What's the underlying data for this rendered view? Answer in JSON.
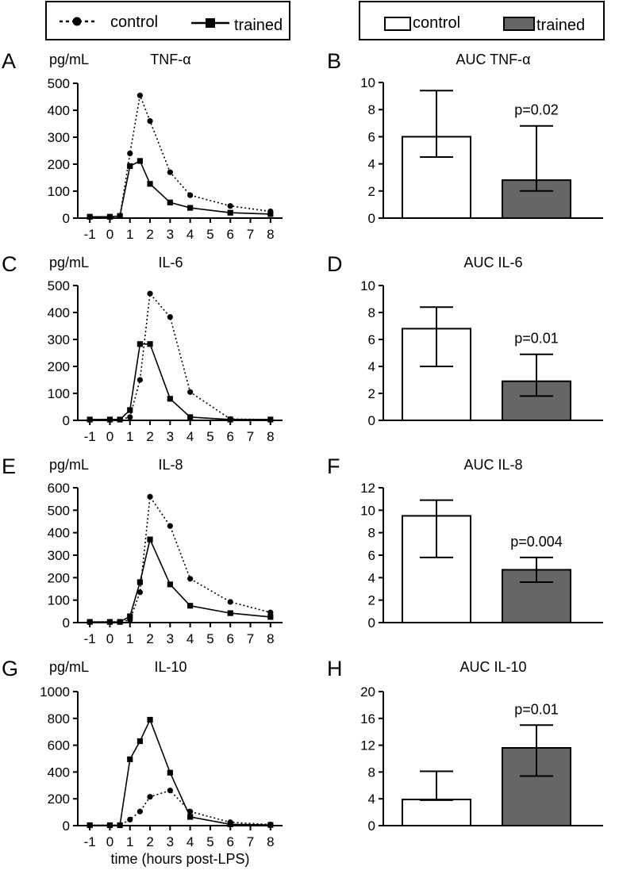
{
  "legend_left": {
    "control_label": "control",
    "trained_label": "trained"
  },
  "legend_right": {
    "control_label": "control",
    "trained_label": "trained"
  },
  "colors": {
    "control": "#000000",
    "trained": "#000000",
    "bar_control": "#ffffff",
    "bar_trained": "#666666"
  },
  "xlabel": "time (hours post-LPS)",
  "chart_data": [
    {
      "panel": "A",
      "type": "line",
      "title": "TNF-α",
      "unit": "pg/mL",
      "xticks": [
        -1,
        0,
        1,
        2,
        3,
        4,
        5,
        6,
        7,
        8
      ],
      "ylim": [
        0,
        500
      ],
      "yticks": [
        0,
        100,
        200,
        300,
        400,
        500
      ],
      "series": [
        {
          "name": "control",
          "style": "dotted-circle",
          "x": [
            -1,
            0,
            0.5,
            1,
            1.5,
            2,
            3,
            4,
            6,
            8
          ],
          "y": [
            5,
            5,
            8,
            240,
            455,
            360,
            170,
            85,
            45,
            25
          ]
        },
        {
          "name": "trained",
          "style": "solid-square",
          "x": [
            -1,
            0,
            0.5,
            1,
            1.5,
            2,
            3,
            4,
            6,
            8
          ],
          "y": [
            5,
            5,
            8,
            193,
            212,
            127,
            58,
            38,
            20,
            15
          ]
        }
      ]
    },
    {
      "panel": "B",
      "type": "bar",
      "title": "AUC TNF-α",
      "categories": [
        "control",
        "trained"
      ],
      "values": [
        6.0,
        2.8
      ],
      "err_low": [
        4.5,
        2.0
      ],
      "err_high": [
        9.4,
        6.8
      ],
      "ylim": [
        0,
        10
      ],
      "yticks": [
        0,
        2,
        4,
        6,
        8,
        10
      ],
      "p": "p=0.02"
    },
    {
      "panel": "C",
      "type": "line",
      "title": "IL-6",
      "unit": "pg/mL",
      "xticks": [
        -1,
        0,
        1,
        2,
        3,
        4,
        5,
        6,
        7,
        8
      ],
      "ylim": [
        0,
        500
      ],
      "yticks": [
        0,
        100,
        200,
        300,
        400,
        500
      ],
      "series": [
        {
          "name": "control",
          "style": "dotted-circle",
          "x": [
            -1,
            0,
            0.5,
            1,
            1.5,
            2,
            3,
            4,
            6,
            8
          ],
          "y": [
            3,
            3,
            3,
            12,
            150,
            470,
            383,
            105,
            5,
            3
          ]
        },
        {
          "name": "trained",
          "style": "solid-square",
          "x": [
            -1,
            0,
            0.5,
            1,
            1.5,
            2,
            3,
            4,
            6,
            8
          ],
          "y": [
            3,
            3,
            3,
            38,
            283,
            283,
            80,
            12,
            3,
            3
          ]
        }
      ]
    },
    {
      "panel": "D",
      "type": "bar",
      "title": "AUC IL-6",
      "categories": [
        "control",
        "trained"
      ],
      "values": [
        6.8,
        2.9
      ],
      "err_low": [
        4.0,
        1.8
      ],
      "err_high": [
        8.4,
        4.9
      ],
      "ylim": [
        0,
        10
      ],
      "yticks": [
        0,
        2,
        4,
        6,
        8,
        10
      ],
      "p": "p=0.01"
    },
    {
      "panel": "E",
      "type": "line",
      "title": "IL-8",
      "unit": "pg/mL",
      "xticks": [
        -1,
        0,
        1,
        2,
        3,
        4,
        5,
        6,
        7,
        8
      ],
      "ylim": [
        0,
        600
      ],
      "yticks": [
        0,
        100,
        200,
        300,
        400,
        500,
        600
      ],
      "series": [
        {
          "name": "control",
          "style": "dotted-circle",
          "x": [
            -1,
            0,
            0.5,
            1,
            1.5,
            2,
            3,
            4,
            6,
            8
          ],
          "y": [
            3,
            3,
            3,
            12,
            135,
            560,
            430,
            195,
            92,
            45
          ]
        },
        {
          "name": "trained",
          "style": "solid-square",
          "x": [
            -1,
            0,
            0.5,
            1,
            1.5,
            2,
            3,
            4,
            6,
            8
          ],
          "y": [
            3,
            3,
            3,
            28,
            180,
            370,
            170,
            75,
            42,
            25
          ]
        }
      ]
    },
    {
      "panel": "F",
      "type": "bar",
      "title": "AUC IL-8",
      "categories": [
        "control",
        "trained"
      ],
      "values": [
        9.5,
        4.7
      ],
      "err_low": [
        5.8,
        3.6
      ],
      "err_high": [
        10.9,
        5.8
      ],
      "ylim": [
        0,
        12
      ],
      "yticks": [
        0,
        2,
        4,
        6,
        8,
        10,
        12
      ],
      "p": "p=0.004"
    },
    {
      "panel": "G",
      "type": "line",
      "title": "IL-10",
      "unit": "pg/mL",
      "xticks": [
        -1,
        0,
        1,
        2,
        3,
        4,
        5,
        6,
        7,
        8
      ],
      "ylim": [
        0,
        1000
      ],
      "yticks": [
        0,
        200,
        400,
        600,
        800,
        1000
      ],
      "series": [
        {
          "name": "control",
          "style": "dotted-circle",
          "x": [
            -1,
            0,
            0.5,
            1,
            1.5,
            2,
            3,
            4,
            6,
            8
          ],
          "y": [
            3,
            3,
            3,
            45,
            105,
            215,
            262,
            105,
            25,
            8
          ]
        },
        {
          "name": "trained",
          "style": "solid-square",
          "x": [
            -1,
            0,
            0.5,
            1,
            1.5,
            2,
            3,
            4,
            6,
            8
          ],
          "y": [
            3,
            3,
            3,
            495,
            630,
            790,
            395,
            65,
            10,
            5
          ]
        }
      ]
    },
    {
      "panel": "H",
      "type": "bar",
      "title": "AUC IL-10",
      "categories": [
        "control",
        "trained"
      ],
      "values": [
        3.9,
        11.6
      ],
      "err_low": [
        3.8,
        7.4
      ],
      "err_high": [
        8.1,
        15.0
      ],
      "ylim": [
        0,
        20
      ],
      "yticks": [
        0,
        4,
        8,
        12,
        16,
        20
      ],
      "p": "p=0.01"
    }
  ]
}
